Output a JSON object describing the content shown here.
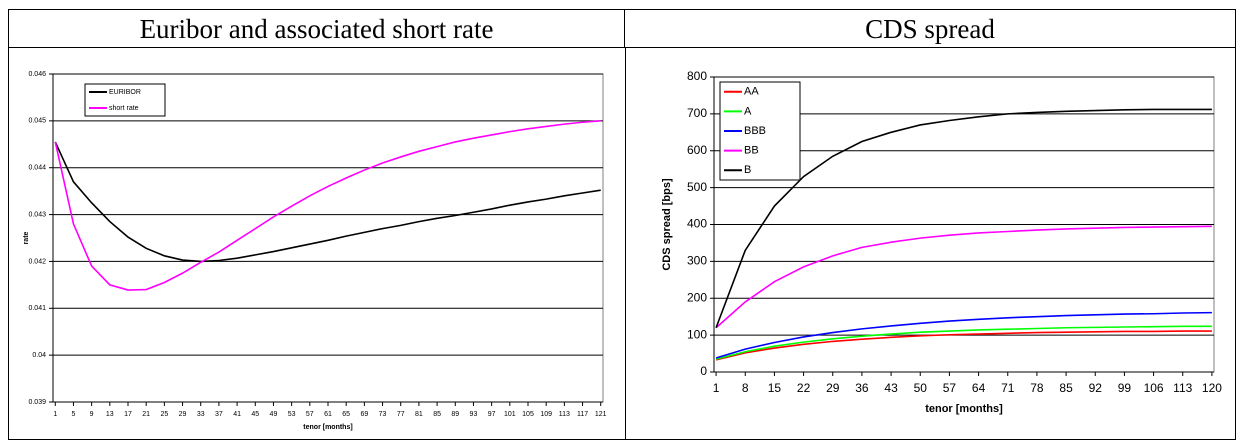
{
  "chart_data": [
    {
      "type": "line",
      "title": "Euribor and associated short rate",
      "xlabel": "tenor [months]",
      "ylabel": "rate",
      "x": [
        1,
        5,
        9,
        13,
        17,
        21,
        25,
        29,
        33,
        37,
        41,
        45,
        49,
        53,
        57,
        61,
        65,
        69,
        73,
        77,
        81,
        85,
        89,
        93,
        97,
        101,
        105,
        109,
        113,
        117,
        121
      ],
      "series": [
        {
          "name": "EURIBOR",
          "color": "#000000",
          "values": [
            0.04455,
            0.0437,
            0.04325,
            0.04285,
            0.04252,
            0.04228,
            0.04212,
            0.04203,
            0.042,
            0.04202,
            0.04207,
            0.04214,
            0.04221,
            0.04229,
            0.04237,
            0.04245,
            0.04254,
            0.04262,
            0.0427,
            0.04277,
            0.04285,
            0.04292,
            0.04298,
            0.04305,
            0.04312,
            0.0432,
            0.04327,
            0.04333,
            0.0434,
            0.04346,
            0.04352
          ]
        },
        {
          "name": "short rate",
          "color": "#ff00ff",
          "values": [
            0.04455,
            0.0428,
            0.0419,
            0.0415,
            0.04139,
            0.0414,
            0.04155,
            0.04175,
            0.04198,
            0.0422,
            0.04245,
            0.0427,
            0.04295,
            0.04318,
            0.0434,
            0.0436,
            0.04378,
            0.04395,
            0.0441,
            0.04423,
            0.04435,
            0.04445,
            0.04455,
            0.04463,
            0.0447,
            0.04477,
            0.04483,
            0.04488,
            0.04493,
            0.04497,
            0.045
          ]
        }
      ],
      "xlim": [
        0.5,
        121.5
      ],
      "xticks": [
        1,
        5,
        9,
        13,
        17,
        21,
        25,
        29,
        33,
        37,
        41,
        45,
        49,
        53,
        57,
        61,
        65,
        69,
        73,
        77,
        81,
        85,
        89,
        93,
        97,
        101,
        105,
        109,
        113,
        117,
        121
      ],
      "ylim": [
        0.039,
        0.046
      ],
      "yticks": [
        0.039,
        0.04,
        0.041,
        0.042,
        0.043,
        0.044,
        0.045,
        0.046
      ],
      "grid": true,
      "legend": "upper left"
    },
    {
      "type": "line",
      "title": "CDS spread",
      "xlabel": "tenor [months]",
      "ylabel": "CDS spread [bps]",
      "x": [
        1,
        8,
        15,
        22,
        29,
        36,
        43,
        50,
        57,
        64,
        71,
        78,
        85,
        92,
        99,
        106,
        113,
        120
      ],
      "series": [
        {
          "name": "AA",
          "color": "#ff0000",
          "values": [
            33,
            52,
            65,
            75,
            83,
            89,
            94,
            98,
            101,
            103,
            105,
            107,
            108,
            109,
            110,
            110,
            111,
            111
          ]
        },
        {
          "name": "A",
          "color": "#00ff00",
          "values": [
            35,
            55,
            70,
            81,
            90,
            97,
            103,
            108,
            111,
            114,
            116,
            118,
            120,
            121,
            122,
            123,
            124,
            124
          ]
        },
        {
          "name": "BBB",
          "color": "#0000ff",
          "values": [
            38,
            62,
            80,
            95,
            107,
            117,
            125,
            132,
            138,
            143,
            147,
            150,
            153,
            155,
            157,
            158,
            160,
            161
          ]
        },
        {
          "name": "BB",
          "color": "#ff00ff",
          "values": [
            120,
            190,
            245,
            285,
            315,
            338,
            352,
            363,
            371,
            377,
            381,
            385,
            388,
            390,
            392,
            393,
            394,
            395
          ]
        },
        {
          "name": "B",
          "color": "#000000",
          "values": [
            120,
            330,
            450,
            530,
            585,
            625,
            650,
            670,
            682,
            692,
            700,
            704,
            707,
            709,
            711,
            712,
            712,
            712
          ]
        }
      ],
      "xlim": [
        0.5,
        120.5
      ],
      "xticks": [
        1,
        8,
        15,
        22,
        29,
        36,
        43,
        50,
        57,
        64,
        71,
        78,
        85,
        92,
        99,
        106,
        113,
        120
      ],
      "ylim": [
        0,
        800
      ],
      "yticks": [
        0,
        100,
        200,
        300,
        400,
        500,
        600,
        700,
        800
      ],
      "grid": true,
      "legend": "upper left"
    }
  ]
}
